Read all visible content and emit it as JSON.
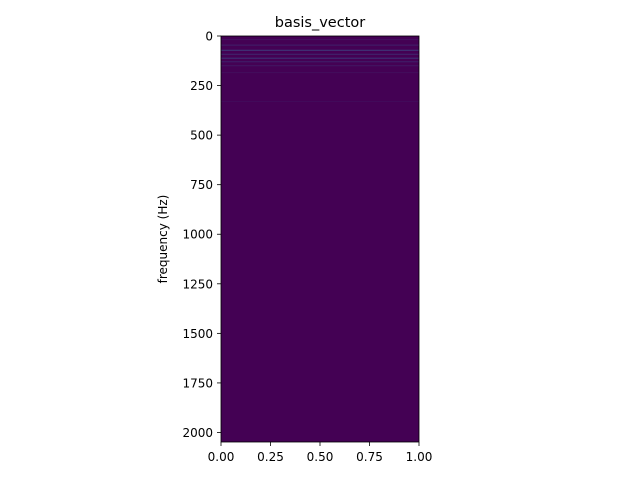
{
  "chart_data": {
    "type": "heatmap",
    "title": "basis_vector",
    "xlabel": "",
    "ylabel": "frequency (Hz)",
    "xlim": [
      0.0,
      1.0
    ],
    "ylim": [
      2048,
      0
    ],
    "x_ticks": [
      0.0,
      0.25,
      0.5,
      0.75,
      1.0
    ],
    "x_tick_labels": [
      "0.00",
      "0.25",
      "0.50",
      "0.75",
      "1.00"
    ],
    "y_ticks": [
      0,
      250,
      500,
      750,
      1000,
      1250,
      1500,
      1750,
      2000
    ],
    "y_tick_labels": [
      "0",
      "250",
      "500",
      "750",
      "1000",
      "1250",
      "1500",
      "1750",
      "2000"
    ],
    "colormap": "viridis",
    "background_color": "#440154",
    "grid": false,
    "legend": "none",
    "highlight_rows": [
      {
        "frequency": 18,
        "intensity": 0.05
      },
      {
        "frequency": 46,
        "intensity": 0.1
      },
      {
        "frequency": 72,
        "intensity": 0.18
      },
      {
        "frequency": 92,
        "intensity": 0.12
      },
      {
        "frequency": 112,
        "intensity": 0.16
      },
      {
        "frequency": 130,
        "intensity": 0.1
      },
      {
        "frequency": 150,
        "intensity": 0.07
      },
      {
        "frequency": 185,
        "intensity": 0.04
      },
      {
        "frequency": 330,
        "intensity": 0.03
      }
    ]
  }
}
